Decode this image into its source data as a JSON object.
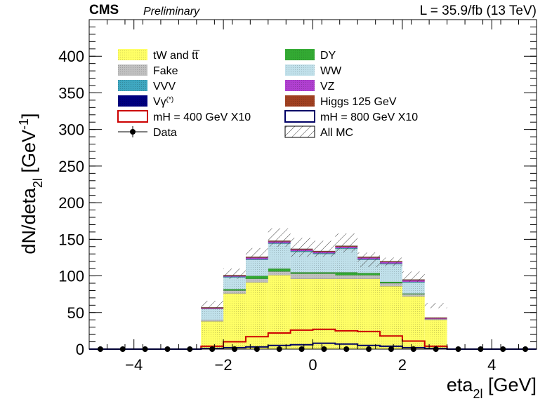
{
  "header": {
    "experiment": "CMS",
    "status": "Preliminary",
    "lumi": "L = 35.9/fb (13 TeV)"
  },
  "chart_data": {
    "type": "bar",
    "stacked": true,
    "xlabel": "eta_2l [GeV]",
    "ylabel": "dN/deta_2l [GeV^-1]",
    "xlim": [
      -5,
      5
    ],
    "ylim": [
      0,
      450
    ],
    "x_ticks": [
      -4,
      -2,
      0,
      2,
      4
    ],
    "y_ticks": [
      0,
      50,
      100,
      150,
      200,
      250,
      300,
      350,
      400
    ],
    "bin_edges": [
      -5.0,
      -4.5,
      -4.0,
      -3.5,
      -3.0,
      -2.5,
      -2.0,
      -1.5,
      -1.0,
      -0.5,
      0.0,
      0.5,
      1.0,
      1.5,
      2.0,
      2.5,
      3.0,
      3.5,
      4.0,
      4.5,
      5.0
    ],
    "legend_placement": "top",
    "series": [
      {
        "name": "tW and tt̅",
        "color": "#ffff66",
        "values": [
          0,
          0,
          0,
          0,
          0,
          38,
          76,
          91,
          101,
          96,
          96,
          96,
          96,
          86,
          72,
          40,
          0,
          0,
          0,
          0
        ]
      },
      {
        "name": "Fake",
        "color": "#c0c0c0",
        "values": [
          0,
          0,
          0,
          0,
          0,
          2,
          4,
          5,
          5,
          7,
          7,
          5,
          5,
          4,
          3,
          1,
          0,
          0,
          0,
          0
        ]
      },
      {
        "name": "DY",
        "color": "#33aa33",
        "values": [
          0,
          0,
          0,
          0,
          0,
          0,
          2,
          4,
          4,
          2,
          2,
          4,
          3,
          2,
          1,
          0,
          0,
          0,
          0,
          0
        ]
      },
      {
        "name": "WW",
        "color": "#c0e0ea",
        "values": [
          0,
          0,
          0,
          0,
          0,
          15,
          16,
          22,
          34,
          28,
          25,
          32,
          18,
          24,
          15,
          0,
          0,
          0,
          0,
          0
        ]
      },
      {
        "name": "VVV",
        "color": "#3fa7c0",
        "values": [
          0,
          0,
          0,
          0,
          0,
          0,
          1,
          1,
          1,
          1,
          1,
          1,
          1,
          1,
          1,
          0,
          0,
          0,
          0,
          0
        ]
      },
      {
        "name": "VZ",
        "color": "#b040d0",
        "values": [
          0,
          0,
          0,
          0,
          0,
          1,
          1,
          2,
          2,
          2,
          2,
          2,
          2,
          2,
          2,
          1,
          0,
          0,
          0,
          0
        ]
      },
      {
        "name": "Vγ(*)",
        "color": "#000080",
        "values": [
          0,
          0,
          0,
          0,
          0,
          0,
          0,
          0,
          0,
          0,
          0,
          0,
          0,
          0,
          0,
          0,
          0,
          0,
          0,
          0
        ]
      },
      {
        "name": "Higgs 125 GeV",
        "color": "#a04020",
        "values": [
          0,
          0,
          0,
          0,
          0,
          1,
          1,
          1,
          1,
          1,
          1,
          1,
          1,
          1,
          1,
          1,
          0,
          0,
          0,
          0
        ]
      }
    ],
    "mc_uncertainty": {
      "name": "All MC",
      "values": [
        0,
        0,
        0,
        0,
        0,
        66,
        110,
        138,
        165,
        152,
        148,
        158,
        132,
        125,
        106,
        63,
        0,
        0,
        0,
        0
      ],
      "low": [
        0,
        0,
        0,
        0,
        0,
        56,
        96,
        124,
        140,
        126,
        126,
        132,
        112,
        113,
        92,
        56,
        0,
        0,
        0,
        0
      ]
    },
    "signal_400": {
      "name": "mH = 400 GeV X10",
      "color": "#cc0000",
      "values": [
        0,
        0,
        0,
        0,
        0,
        4,
        10,
        17,
        22,
        26,
        27,
        25,
        24,
        18,
        11,
        4,
        0,
        0,
        0,
        0
      ]
    },
    "signal_800": {
      "name": "mH = 800 GeV X10",
      "color": "#000066",
      "values": [
        0,
        0,
        0,
        0,
        0,
        1,
        2,
        3,
        5,
        6,
        8,
        7,
        5,
        4,
        2,
        1,
        0,
        0,
        0,
        0
      ]
    },
    "data": {
      "name": "Data",
      "values": [
        0,
        0,
        0,
        0,
        0,
        0,
        0,
        0,
        0,
        0,
        0,
        0,
        0,
        0,
        0,
        0,
        0,
        0,
        0,
        0
      ]
    }
  }
}
